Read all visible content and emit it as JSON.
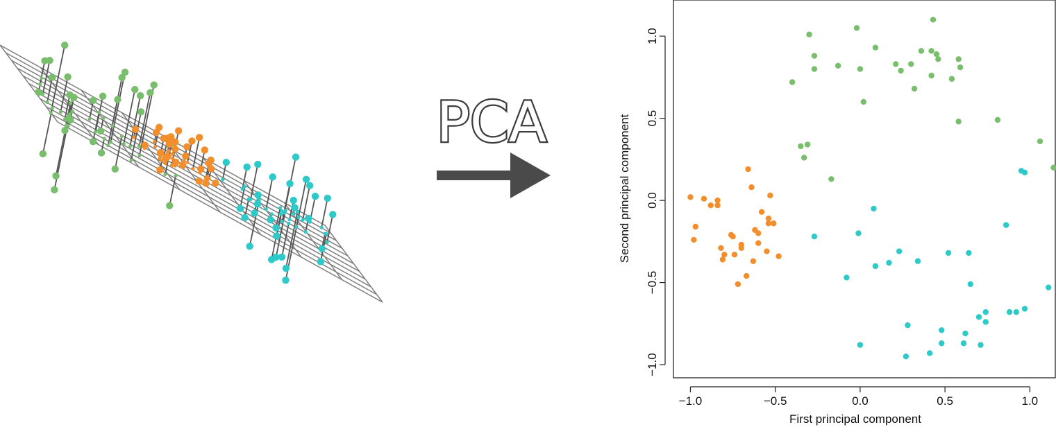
{
  "figure_label": "PCA",
  "colors": {
    "orange": "#F28E2B",
    "green": "#79BE6C",
    "cyan": "#2EC9C9",
    "arrow": "#4A4A4A",
    "grid": "#7F7F7F",
    "line": "#555555"
  },
  "chart_data": [
    {
      "type": "scatter",
      "title": "",
      "xlabel": "First principal component",
      "ylabel": "Second principal component",
      "xlim": [
        -1.1,
        1.15
      ],
      "ylim": [
        -1.08,
        1.22
      ],
      "xticks": [
        "−1.0",
        "−0.5",
        "0.0",
        "0.5",
        "1.0"
      ],
      "xtick_values": [
        -1.0,
        -0.5,
        0.0,
        0.5,
        1.0
      ],
      "yticks": [
        "−1.0",
        "−0.5",
        "0.0",
        "0.5",
        "1.0"
      ],
      "ytick_values": [
        -1.0,
        -0.5,
        0.0,
        0.5,
        1.0
      ],
      "grid": false,
      "series": [
        {
          "color": "#F28E2B",
          "points": [
            [
              -1.0,
              0.02
            ],
            [
              -0.98,
              -0.24
            ],
            [
              -0.97,
              -0.16
            ],
            [
              -0.92,
              0.01
            ],
            [
              -0.88,
              -0.03
            ],
            [
              -0.84,
              -0.03
            ],
            [
              -0.84,
              0.0
            ],
            [
              -0.82,
              -0.29
            ],
            [
              -0.81,
              -0.36
            ],
            [
              -0.8,
              -0.33
            ],
            [
              -0.76,
              -0.21
            ],
            [
              -0.75,
              -0.22
            ],
            [
              -0.74,
              -0.33
            ],
            [
              -0.72,
              -0.51
            ],
            [
              -0.7,
              -0.29
            ],
            [
              -0.7,
              -0.27
            ],
            [
              -0.67,
              -0.46
            ],
            [
              -0.66,
              0.19
            ],
            [
              -0.64,
              0.08
            ],
            [
              -0.63,
              -0.37
            ],
            [
              -0.62,
              -0.18
            ],
            [
              -0.6,
              -0.2
            ],
            [
              -0.6,
              -0.26
            ],
            [
              -0.58,
              -0.07
            ],
            [
              -0.55,
              -0.31
            ],
            [
              -0.54,
              -0.14
            ],
            [
              -0.54,
              -0.11
            ],
            [
              -0.53,
              0.03
            ],
            [
              -0.51,
              -0.14
            ],
            [
              -0.48,
              -0.34
            ]
          ]
        },
        {
          "color": "#79BE6C",
          "points": [
            [
              -0.3,
              1.01
            ],
            [
              -0.02,
              1.05
            ],
            [
              0.43,
              1.1
            ],
            [
              0.09,
              0.93
            ],
            [
              -0.27,
              0.88
            ],
            [
              0.21,
              0.83
            ],
            [
              0.3,
              0.83
            ],
            [
              0.36,
              0.91
            ],
            [
              0.42,
              0.91
            ],
            [
              0.45,
              0.89
            ],
            [
              0.46,
              0.86
            ],
            [
              0.58,
              0.86
            ],
            [
              0.59,
              0.81
            ],
            [
              -0.27,
              0.8
            ],
            [
              -0.13,
              0.82
            ],
            [
              0.24,
              0.79
            ],
            [
              0.0,
              0.8
            ],
            [
              0.42,
              0.76
            ],
            [
              0.54,
              0.74
            ],
            [
              -0.4,
              0.72
            ],
            [
              0.32,
              0.68
            ],
            [
              0.02,
              0.6
            ],
            [
              0.58,
              0.48
            ],
            [
              0.81,
              0.49
            ],
            [
              -0.35,
              0.33
            ],
            [
              -0.31,
              0.34
            ],
            [
              -0.33,
              0.26
            ],
            [
              -0.17,
              0.13
            ],
            [
              1.06,
              0.36
            ],
            [
              1.14,
              0.2
            ]
          ]
        },
        {
          "color": "#2EC9C9",
          "points": [
            [
              0.95,
              0.18
            ],
            [
              0.97,
              0.17
            ],
            [
              0.08,
              -0.05
            ],
            [
              -0.01,
              -0.2
            ],
            [
              -0.27,
              -0.22
            ],
            [
              0.86,
              -0.15
            ],
            [
              0.23,
              -0.31
            ],
            [
              0.52,
              -0.32
            ],
            [
              0.64,
              -0.32
            ],
            [
              0.34,
              -0.37
            ],
            [
              0.17,
              -0.38
            ],
            [
              0.09,
              -0.4
            ],
            [
              -0.08,
              -0.47
            ],
            [
              0.65,
              -0.51
            ],
            [
              1.11,
              -0.53
            ],
            [
              0.97,
              -0.66
            ],
            [
              0.92,
              -0.68
            ],
            [
              0.88,
              -0.68
            ],
            [
              0.74,
              -0.68
            ],
            [
              0.74,
              -0.74
            ],
            [
              0.7,
              -0.71
            ],
            [
              0.28,
              -0.76
            ],
            [
              0.48,
              -0.79
            ],
            [
              0.62,
              -0.81
            ],
            [
              0.48,
              -0.87
            ],
            [
              0.61,
              -0.87
            ],
            [
              0.71,
              -0.88
            ],
            [
              0.0,
              -0.88
            ],
            [
              0.41,
              -0.93
            ],
            [
              0.27,
              -0.95
            ]
          ]
        }
      ]
    },
    {
      "type": "scatter",
      "title": "",
      "xlabel": "",
      "ylabel": "",
      "grid": true,
      "note": "3D perspective view: points projected onto a plane (first two principal components)",
      "series": [
        {
          "color": "#79BE6C",
          "points": [
            [
              -1.05,
              0.83,
              0.95
            ],
            [
              -0.93,
              0.94,
              0.4
            ],
            [
              -0.98,
              0.55,
              0.35
            ],
            [
              -0.52,
              0.85,
              0.95
            ],
            [
              -0.9,
              0.78,
              0.34
            ],
            [
              -0.44,
              0.7,
              0.98
            ],
            [
              -0.33,
              0.92,
              0.68
            ],
            [
              -0.56,
              0.64,
              0.5
            ],
            [
              -0.88,
              0.62,
              0.49
            ],
            [
              -0.14,
              0.62,
              0.99
            ],
            [
              -0.25,
              0.52,
              0.76
            ],
            [
              -0.95,
              0.36,
              0.47
            ],
            [
              -0.18,
              0.49,
              0.71
            ],
            [
              -0.5,
              0.33,
              0.26
            ],
            [
              0.05,
              0.76,
              0.44
            ],
            [
              -0.88,
              0.1,
              0.33
            ],
            [
              -0.22,
              0.15,
              0.37
            ],
            [
              -0.03,
              0.32,
              0.75
            ],
            [
              -0.27,
              0.06,
              -0.18
            ],
            [
              -0.78,
              -0.13,
              -0.2
            ],
            [
              -0.95,
              0.95,
              -0.71
            ],
            [
              -0.76,
              0.53,
              -1.06
            ],
            [
              -0.97,
              0.65,
              -0.64
            ],
            [
              -0.19,
              0.31,
              -0.46
            ],
            [
              -0.55,
              0.03,
              -0.26
            ],
            [
              -0.27,
              -0.05,
              -0.41
            ],
            [
              -0.62,
              0.17,
              -0.38
            ],
            [
              0.2,
              0.62,
              -0.42
            ],
            [
              -0.5,
              0.7,
              -0.2
            ],
            [
              -0.69,
              0.4,
              -0.12
            ]
          ]
        },
        {
          "color": "#F28E2B",
          "points": [
            [
              0.26,
              0.36,
              0.23
            ],
            [
              0.5,
              0.4,
              0.01
            ],
            [
              -0.01,
              0.13,
              0.11
            ],
            [
              0.31,
              0.31,
              0.05
            ],
            [
              0.23,
              0.28,
              0.01
            ],
            [
              0.42,
              0.22,
              0.16
            ],
            [
              0.77,
              0.1,
              -0.02
            ],
            [
              0.03,
              0.29,
              0.04
            ],
            [
              0.51,
              0.0,
              0.2
            ],
            [
              0.65,
              0.17,
              0.21
            ],
            [
              0.18,
              0.41,
              0.27
            ],
            [
              0.19,
              0.25,
              0.04
            ],
            [
              0.7,
              0.12,
              0.14
            ],
            [
              0.26,
              0.17,
              0.24
            ],
            [
              0.36,
              0.12,
              0.39
            ],
            [
              0.45,
              0.13,
              -0.01
            ],
            [
              0.41,
              -0.02,
              0.17
            ],
            [
              0.34,
              0.04,
              0.23
            ],
            [
              0.15,
              0.35,
              0.28
            ],
            [
              0.56,
              0.09,
              0.44
            ],
            [
              0.7,
              0.08,
              0.23
            ],
            [
              0.27,
              -0.1,
              0.13
            ],
            [
              0.32,
              0.09,
              0.2
            ],
            [
              0.22,
              0.05,
              0.27
            ],
            [
              0.16,
              0.38,
              -0.13
            ],
            [
              0.55,
              -0.02,
              0.3
            ],
            [
              0.63,
              0.08,
              0.05
            ],
            [
              0.69,
              -0.06,
              0.26
            ],
            [
              0.64,
              0.22,
              -0.04
            ],
            [
              0.39,
              -0.06,
              -0.08
            ]
          ]
        },
        {
          "color": "#2EC9C9",
          "points": [
            [
              1.67,
              -0.23,
              -0.88
            ],
            [
              1.72,
              -0.39,
              -0.79
            ],
            [
              1.49,
              -0.21,
              -0.28
            ],
            [
              1.25,
              0.08,
              0.45
            ],
            [
              1.12,
              0.04,
              0.49
            ],
            [
              1.9,
              -0.18,
              -0.21
            ],
            [
              1.52,
              0.12,
              0.67
            ],
            [
              1.71,
              -0.23,
              0.48
            ],
            [
              1.5,
              -0.13,
              0.78
            ],
            [
              1.61,
              0.11,
              0.19
            ],
            [
              0.91,
              -0.1,
              0.24
            ],
            [
              1.5,
              0.0,
              0.27
            ],
            [
              1.36,
              0.19,
              0.53
            ],
            [
              1.63,
              -0.25,
              0.09
            ],
            [
              1.8,
              -0.29,
              0.36
            ],
            [
              1.92,
              -0.32,
              0.41
            ],
            [
              1.24,
              -0.07,
              -0.64
            ],
            [
              1.44,
              0.14,
              -0.47
            ],
            [
              1.43,
              -0.03,
              -0.64
            ],
            [
              1.09,
              0.07,
              -0.26
            ],
            [
              1.18,
              -0.27,
              -0.31
            ],
            [
              1.11,
              -0.14,
              0.31
            ],
            [
              1.48,
              -0.14,
              -0.35
            ],
            [
              1.3,
              -0.25,
              -0.26
            ],
            [
              1.25,
              -0.11,
              -0.07
            ],
            [
              1.92,
              -0.2,
              -0.39
            ],
            [
              1.29,
              -0.23,
              0.0
            ],
            [
              1.83,
              0.06,
              0.39
            ],
            [
              1.54,
              -0.21,
              -0.65
            ],
            [
              1.28,
              0.14,
              -0.08
            ]
          ]
        }
      ]
    }
  ]
}
